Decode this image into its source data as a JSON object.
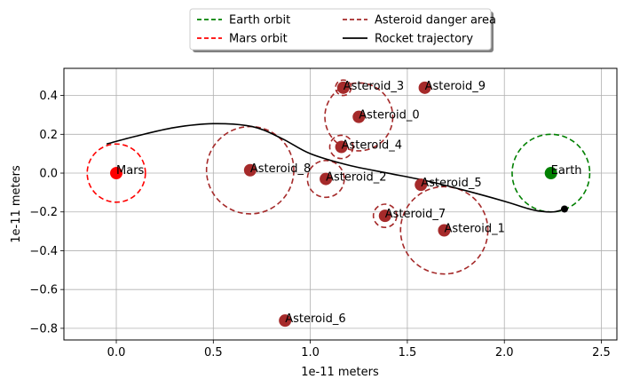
{
  "chart_data": {
    "type": "scatter",
    "xlabel": "1e-11 meters",
    "ylabel": "1e-11 meters",
    "xlim": [
      -0.27,
      2.58
    ],
    "ylim": [
      -0.86,
      0.54
    ],
    "xticks": [
      0.0,
      0.5,
      1.0,
      1.5,
      2.0,
      2.5
    ],
    "yticks": [
      -0.8,
      -0.6,
      -0.4,
      -0.2,
      0.0,
      0.2,
      0.4
    ],
    "xtick_labels": [
      "0.0",
      "0.5",
      "1.0",
      "1.5",
      "2.0",
      "2.5"
    ],
    "ytick_labels": [
      "−0.8",
      "−0.6",
      "−0.4",
      "−0.2",
      "0.0",
      "0.2",
      "0.4"
    ],
    "grid": true,
    "legend_position": "top-center",
    "legend": [
      {
        "label": "Earth orbit",
        "color": "#008000",
        "style": "dashed"
      },
      {
        "label": "Mars orbit",
        "color": "#ff0000",
        "style": "dashed"
      },
      {
        "label": "Asteroid danger area",
        "color": "#a52a2a",
        "style": "dashed"
      },
      {
        "label": "Rocket trajectory",
        "color": "#000000",
        "style": "solid"
      }
    ],
    "planets": [
      {
        "name": "Mars",
        "x": 0.0,
        "y": 0.0,
        "orbit_radius": 0.15,
        "color": "#ff0000"
      },
      {
        "name": "Earth",
        "x": 2.24,
        "y": 0.0,
        "orbit_radius": 0.2,
        "color": "#008000"
      }
    ],
    "asteroids": [
      {
        "name": "Asteroid_0",
        "x": 1.25,
        "y": 0.29,
        "danger_radius": 0.175
      },
      {
        "name": "Asteroid_1",
        "x": 1.69,
        "y": -0.295,
        "danger_radius": 0.225
      },
      {
        "name": "Asteroid_2",
        "x": 1.08,
        "y": -0.03,
        "danger_radius": 0.095
      },
      {
        "name": "Asteroid_3",
        "x": 1.17,
        "y": 0.44,
        "danger_radius": 0.04
      },
      {
        "name": "Asteroid_4",
        "x": 1.16,
        "y": 0.135,
        "danger_radius": 0.06
      },
      {
        "name": "Asteroid_5",
        "x": 1.57,
        "y": -0.06,
        "danger_radius": 0.0
      },
      {
        "name": "Asteroid_6",
        "x": 0.87,
        "y": -0.76,
        "danger_radius": 0.0
      },
      {
        "name": "Asteroid_7",
        "x": 1.385,
        "y": -0.22,
        "danger_radius": 0.06
      },
      {
        "name": "Asteroid_8",
        "x": 0.69,
        "y": 0.015,
        "danger_radius": 0.225
      },
      {
        "name": "Asteroid_9",
        "x": 1.59,
        "y": 0.44,
        "danger_radius": 0.0
      }
    ],
    "asteroid_color": "#a52a2a",
    "trajectory": {
      "color": "#000000",
      "points": [
        [
          -0.05,
          0.15
        ],
        [
          0.1,
          0.19
        ],
        [
          0.3,
          0.235
        ],
        [
          0.5,
          0.255
        ],
        [
          0.7,
          0.24
        ],
        [
          0.85,
          0.18
        ],
        [
          1.0,
          0.1
        ],
        [
          1.2,
          0.04
        ],
        [
          1.4,
          0.0
        ],
        [
          1.6,
          -0.04
        ],
        [
          1.8,
          -0.09
        ],
        [
          2.0,
          -0.145
        ],
        [
          2.15,
          -0.19
        ],
        [
          2.25,
          -0.2
        ],
        [
          2.31,
          -0.185
        ]
      ],
      "end_marker": {
        "x": 2.31,
        "y": -0.185
      }
    }
  }
}
